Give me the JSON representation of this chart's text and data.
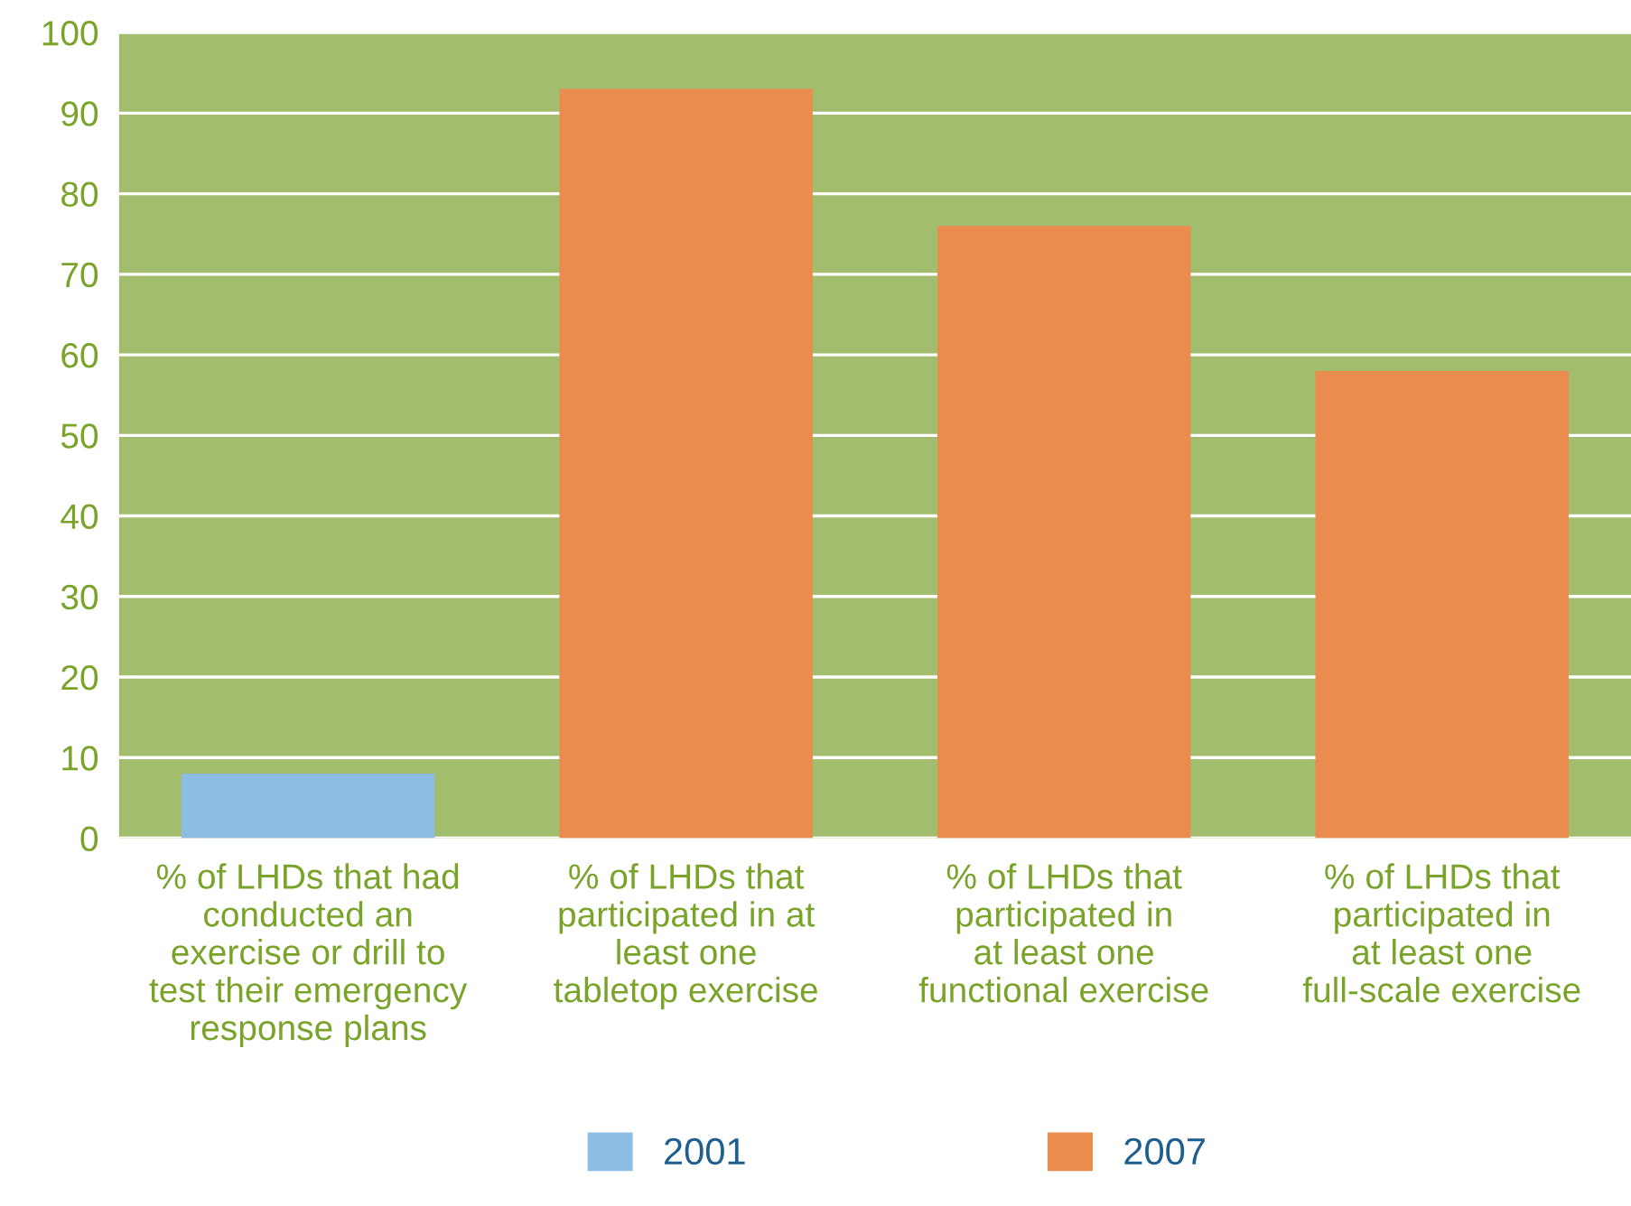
{
  "chart_data": {
    "type": "bar",
    "categories": [
      "% of LHDs that had\nconducted an\nexercise or drill to\ntest their emergency\nresponse plans",
      "% of LHDs that\nparticipated in at\nleast one\ntabletop exercise",
      "% of LHDs that\nparticipated in\nat least one\nfunctional exercise",
      "% of LHDs that\nparticipated in\nat least one\nfull-scale exercise"
    ],
    "series": [
      {
        "name": "2001",
        "color": "#8dbde3",
        "values": [
          8,
          null,
          null,
          null
        ]
      },
      {
        "name": "2007",
        "color": "#e98c4e",
        "values": [
          null,
          93,
          76,
          58
        ]
      }
    ],
    "ylim": [
      0,
      100
    ],
    "yticks": [
      0,
      10,
      20,
      30,
      40,
      50,
      60,
      70,
      80,
      90,
      100
    ],
    "grid": "y",
    "legend": "bottom"
  }
}
